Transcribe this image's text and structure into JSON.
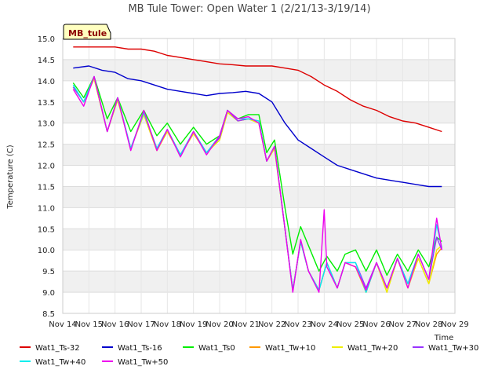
{
  "chart_data": {
    "type": "line",
    "title": "MB Tule Tower: Open Water 1 (2/21/13-3/19/14)",
    "xlabel": "Time",
    "ylabel": "Temperature (C)",
    "site_badge": "MB_tule",
    "ylim": [
      8.5,
      15.0
    ],
    "xlim": [
      0,
      15
    ],
    "x_ticks": [
      0,
      1,
      2,
      3,
      4,
      5,
      6,
      7,
      8,
      9,
      10,
      11,
      12,
      13,
      14,
      15
    ],
    "x_tick_labels": [
      "Nov 14",
      "Nov 15",
      "Nov 16",
      "Nov 17",
      "Nov 18",
      "Nov 19",
      "Nov 20",
      "Nov 21",
      "Nov 22",
      "Nov 23",
      "Nov 24",
      "Nov 25",
      "Nov 26",
      "Nov 27",
      "Nov 28",
      "Nov 29"
    ],
    "y_ticks": [
      8.5,
      9.0,
      9.5,
      10.0,
      10.5,
      11.0,
      11.5,
      12.0,
      12.5,
      13.0,
      13.5,
      14.0,
      14.5,
      15.0
    ],
    "y_tick_labels": [
      "8.5",
      "9.0",
      "9.5",
      "10.0",
      "10.5",
      "11.0",
      "11.5",
      "12.0",
      "12.5",
      "13.0",
      "13.5",
      "14.0",
      "14.5",
      "15.0"
    ],
    "grid": true,
    "legend_position": "bottom",
    "series": [
      {
        "name": "Wat1_Ts-32",
        "color": "#dd0000",
        "x": [
          0.4,
          1.0,
          1.5,
          2.0,
          2.5,
          3.0,
          3.5,
          4.0,
          4.5,
          5.0,
          5.5,
          6.0,
          6.5,
          7.0,
          7.5,
          8.0,
          8.5,
          9.0,
          9.5,
          10.0,
          10.5,
          11.0,
          11.5,
          12.0,
          12.5,
          13.0,
          13.5,
          14.0,
          14.5
        ],
        "y": [
          14.8,
          14.8,
          14.8,
          14.8,
          14.75,
          14.75,
          14.7,
          14.6,
          14.55,
          14.5,
          14.45,
          14.4,
          14.38,
          14.35,
          14.35,
          14.35,
          14.3,
          14.25,
          14.1,
          13.9,
          13.75,
          13.55,
          13.4,
          13.3,
          13.15,
          13.05,
          13.0,
          12.9,
          12.8
        ]
      },
      {
        "name": "Wat1_Ts-16",
        "color": "#0000cc",
        "x": [
          0.4,
          1.0,
          1.5,
          2.0,
          2.5,
          3.0,
          3.5,
          4.0,
          4.5,
          5.0,
          5.5,
          6.0,
          6.5,
          7.0,
          7.5,
          8.0,
          8.5,
          9.0,
          9.5,
          10.0,
          10.5,
          11.0,
          11.5,
          12.0,
          12.5,
          13.0,
          13.5,
          14.0,
          14.5
        ],
        "y": [
          14.3,
          14.35,
          14.25,
          14.2,
          14.05,
          14.0,
          13.9,
          13.8,
          13.75,
          13.7,
          13.65,
          13.7,
          13.72,
          13.75,
          13.7,
          13.5,
          13.0,
          12.6,
          12.4,
          12.2,
          12.0,
          11.9,
          11.8,
          11.7,
          11.65,
          11.6,
          11.55,
          11.5,
          11.5
        ]
      },
      {
        "name": "Wat1_Ts0",
        "color": "#00ee00",
        "x": [
          0.4,
          0.8,
          1.2,
          1.7,
          2.1,
          2.6,
          3.1,
          3.6,
          4.0,
          4.5,
          5.0,
          5.5,
          6.0,
          6.3,
          6.7,
          7.1,
          7.5,
          7.8,
          8.1,
          8.5,
          8.8,
          9.1,
          9.4,
          9.8,
          10.1,
          10.5,
          10.8,
          11.2,
          11.6,
          12.0,
          12.4,
          12.8,
          13.2,
          13.6,
          14.0,
          14.3,
          14.5
        ],
        "y": [
          13.95,
          13.6,
          14.1,
          13.1,
          13.6,
          12.8,
          13.3,
          12.7,
          13.0,
          12.5,
          12.9,
          12.5,
          12.7,
          13.3,
          13.1,
          13.2,
          13.2,
          12.3,
          12.6,
          11.0,
          9.9,
          10.55,
          10.1,
          9.5,
          9.85,
          9.5,
          9.9,
          10.0,
          9.5,
          10.0,
          9.4,
          9.9,
          9.5,
          10.0,
          9.6,
          10.3,
          10.2
        ]
      },
      {
        "name": "Wat1_Tw+10",
        "color": "#ff9900",
        "x": [
          0.4,
          0.8,
          1.2,
          1.7,
          2.1,
          2.6,
          3.1,
          3.6,
          4.0,
          4.5,
          5.0,
          5.5,
          6.0,
          6.3,
          6.7,
          7.1,
          7.5,
          7.8,
          8.1,
          8.5,
          8.8,
          9.1,
          9.4,
          9.8,
          10.1,
          10.5,
          10.8,
          11.2,
          11.6,
          12.0,
          12.4,
          12.8,
          13.2,
          13.6,
          14.0,
          14.3,
          14.5
        ],
        "y": [
          13.85,
          13.5,
          14.05,
          12.8,
          13.55,
          12.4,
          13.2,
          12.35,
          12.8,
          12.25,
          12.75,
          12.3,
          12.6,
          13.25,
          13.05,
          13.1,
          13.0,
          12.1,
          12.4,
          10.5,
          9.05,
          10.2,
          9.5,
          9.05,
          9.7,
          9.1,
          9.7,
          9.6,
          9.0,
          9.7,
          9.0,
          9.8,
          9.1,
          9.8,
          9.2,
          9.9,
          10.05
        ]
      },
      {
        "name": "Wat1_Tw+20",
        "color": "#eeee00",
        "x": [
          0.4,
          0.8,
          1.2,
          1.7,
          2.1,
          2.6,
          3.1,
          3.6,
          4.0,
          4.5,
          5.0,
          5.5,
          6.0,
          6.3,
          6.7,
          7.1,
          7.5,
          7.8,
          8.1,
          8.5,
          8.8,
          9.1,
          9.4,
          9.8,
          10.1,
          10.5,
          10.8,
          11.2,
          11.6,
          12.0,
          12.4,
          12.8,
          13.2,
          13.6,
          14.0,
          14.3,
          14.5
        ],
        "y": [
          13.85,
          13.5,
          14.05,
          12.8,
          13.55,
          12.4,
          13.2,
          12.35,
          12.8,
          12.25,
          12.75,
          12.3,
          12.6,
          13.25,
          13.05,
          13.1,
          13.0,
          12.1,
          12.4,
          10.5,
          9.05,
          10.2,
          9.5,
          9.05,
          9.7,
          9.1,
          9.7,
          9.6,
          9.0,
          9.7,
          9.0,
          9.8,
          9.1,
          9.8,
          9.2,
          10.0,
          10.1
        ]
      },
      {
        "name": "Wat1_Tw+30",
        "color": "#9933ff",
        "x": [
          0.4,
          0.8,
          1.2,
          1.7,
          2.1,
          2.6,
          3.1,
          3.6,
          4.0,
          4.5,
          5.0,
          5.5,
          6.0,
          6.3,
          6.7,
          7.1,
          7.5,
          7.8,
          8.1,
          8.5,
          8.8,
          9.1,
          9.4,
          9.8,
          10.1,
          10.5,
          10.8,
          11.2,
          11.6,
          12.0,
          12.4,
          12.8,
          13.2,
          13.6,
          14.0,
          14.3,
          14.5
        ],
        "y": [
          13.85,
          13.5,
          14.1,
          12.8,
          13.6,
          12.4,
          13.25,
          12.4,
          12.85,
          12.25,
          12.8,
          12.3,
          12.65,
          13.3,
          13.05,
          13.1,
          13.05,
          12.1,
          12.45,
          10.5,
          9.05,
          10.2,
          9.5,
          9.05,
          9.7,
          9.1,
          9.7,
          9.7,
          9.1,
          9.7,
          9.1,
          9.8,
          9.2,
          9.9,
          9.3,
          10.3,
          10.0
        ]
      },
      {
        "name": "Wat1_Tw+40",
        "color": "#00eeee",
        "x": [
          0.4,
          0.8,
          1.2,
          1.7,
          2.1,
          2.6,
          3.1,
          3.6,
          4.0,
          4.5,
          5.0,
          5.5,
          6.0,
          6.3,
          6.7,
          7.1,
          7.5,
          7.8,
          8.1,
          8.5,
          8.8,
          9.1,
          9.4,
          9.8,
          10.1,
          10.5,
          10.8,
          11.2,
          11.6,
          12.0,
          12.4,
          12.8,
          13.2,
          13.6,
          14.0,
          14.3,
          14.5
        ],
        "y": [
          13.9,
          13.5,
          14.1,
          12.8,
          13.6,
          12.4,
          13.25,
          12.4,
          12.85,
          12.25,
          12.8,
          12.3,
          12.7,
          13.3,
          13.1,
          13.1,
          13.05,
          12.1,
          12.45,
          10.5,
          9.05,
          10.2,
          9.5,
          9.05,
          9.7,
          9.1,
          9.7,
          9.7,
          9.0,
          9.7,
          9.1,
          9.8,
          9.2,
          9.9,
          9.3,
          10.6,
          10.05
        ]
      },
      {
        "name": "Wat1_Tw+50",
        "color": "#ee00ee",
        "x": [
          0.4,
          0.8,
          1.2,
          1.7,
          2.1,
          2.6,
          3.1,
          3.6,
          4.0,
          4.5,
          5.0,
          5.5,
          6.0,
          6.3,
          6.7,
          7.1,
          7.5,
          7.8,
          8.1,
          8.5,
          8.8,
          9.1,
          9.4,
          9.8,
          10.0,
          10.1,
          10.5,
          10.8,
          11.2,
          11.6,
          12.0,
          12.4,
          12.8,
          13.2,
          13.6,
          14.0,
          14.3,
          14.5
        ],
        "y": [
          13.8,
          13.4,
          14.1,
          12.8,
          13.6,
          12.35,
          13.3,
          12.35,
          12.85,
          12.2,
          12.8,
          12.25,
          12.7,
          13.3,
          13.1,
          13.15,
          13.0,
          12.1,
          12.45,
          10.5,
          9.0,
          10.25,
          9.5,
          9.0,
          10.95,
          9.6,
          9.1,
          9.7,
          9.6,
          9.05,
          9.7,
          9.1,
          9.8,
          9.1,
          9.9,
          9.3,
          10.75,
          10.0
        ]
      }
    ]
  }
}
